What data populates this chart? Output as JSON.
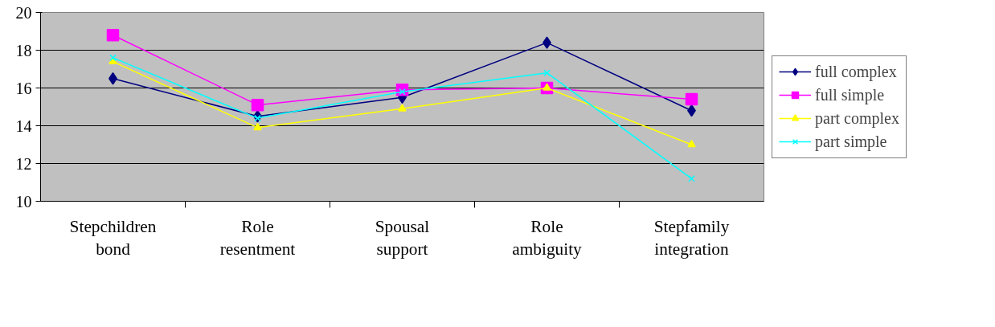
{
  "chart_data": {
    "type": "line",
    "categories": [
      "Stepchildren bond",
      "Role resentment",
      "Spousal support",
      "Role ambiguity",
      "Stepfamily integration"
    ],
    "series": [
      {
        "name": "full complex",
        "color": "#000080",
        "marker": "diamond",
        "values": [
          16.5,
          14.5,
          15.5,
          18.4,
          14.8
        ]
      },
      {
        "name": "full simple",
        "color": "#ff00ff",
        "marker": "square",
        "values": [
          18.8,
          15.1,
          15.9,
          16.0,
          15.4
        ]
      },
      {
        "name": "part complex",
        "color": "#ffff00",
        "marker": "triangle",
        "values": [
          17.4,
          13.9,
          14.9,
          16.0,
          13.0
        ]
      },
      {
        "name": "part simple",
        "color": "#00ffff",
        "marker": "cross",
        "values": [
          17.6,
          14.4,
          15.8,
          16.8,
          11.2
        ]
      }
    ],
    "ylim": [
      10,
      20
    ],
    "yticks": [
      10,
      12,
      14,
      16,
      18,
      20
    ],
    "grid": "y",
    "legend": "right"
  }
}
